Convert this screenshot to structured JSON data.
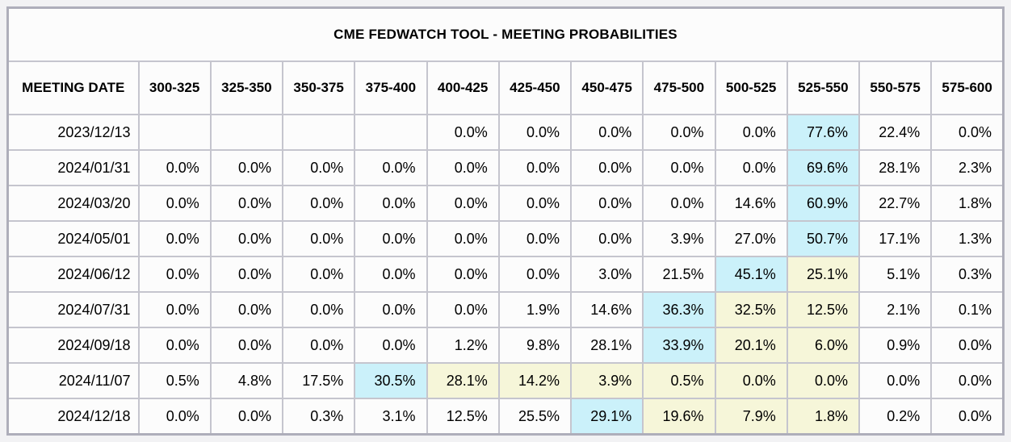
{
  "title": "CME FEDWATCH TOOL - MEETING PROBABILITIES",
  "colors": {
    "highlight_cyan": "#cbf1fa",
    "highlight_yellow": "#f6f6d9"
  },
  "table": {
    "columns": [
      "MEETING DATE",
      "300-325",
      "325-350",
      "350-375",
      "375-400",
      "400-425",
      "425-450",
      "450-475",
      "475-500",
      "500-525",
      "525-550",
      "550-575",
      "575-600"
    ],
    "rows": [
      {
        "date": "2023/12/13",
        "values": [
          "",
          "",
          "",
          "",
          "0.0%",
          "0.0%",
          "0.0%",
          "0.0%",
          "0.0%",
          "77.6%",
          "22.4%",
          "0.0%"
        ],
        "cell_colors": [
          "",
          "",
          "",
          "",
          "",
          "",
          "",
          "",
          "",
          "cyan",
          "",
          ""
        ]
      },
      {
        "date": "2024/01/31",
        "values": [
          "0.0%",
          "0.0%",
          "0.0%",
          "0.0%",
          "0.0%",
          "0.0%",
          "0.0%",
          "0.0%",
          "0.0%",
          "69.6%",
          "28.1%",
          "2.3%"
        ],
        "cell_colors": [
          "",
          "",
          "",
          "",
          "",
          "",
          "",
          "",
          "",
          "cyan",
          "",
          ""
        ]
      },
      {
        "date": "2024/03/20",
        "values": [
          "0.0%",
          "0.0%",
          "0.0%",
          "0.0%",
          "0.0%",
          "0.0%",
          "0.0%",
          "0.0%",
          "14.6%",
          "60.9%",
          "22.7%",
          "1.8%"
        ],
        "cell_colors": [
          "",
          "",
          "",
          "",
          "",
          "",
          "",
          "",
          "",
          "cyan",
          "",
          ""
        ]
      },
      {
        "date": "2024/05/01",
        "values": [
          "0.0%",
          "0.0%",
          "0.0%",
          "0.0%",
          "0.0%",
          "0.0%",
          "0.0%",
          "3.9%",
          "27.0%",
          "50.7%",
          "17.1%",
          "1.3%"
        ],
        "cell_colors": [
          "",
          "",
          "",
          "",
          "",
          "",
          "",
          "",
          "",
          "cyan",
          "",
          ""
        ]
      },
      {
        "date": "2024/06/12",
        "values": [
          "0.0%",
          "0.0%",
          "0.0%",
          "0.0%",
          "0.0%",
          "0.0%",
          "3.0%",
          "21.5%",
          "45.1%",
          "25.1%",
          "5.1%",
          "0.3%"
        ],
        "cell_colors": [
          "",
          "",
          "",
          "",
          "",
          "",
          "",
          "",
          "cyan",
          "yellow",
          "",
          ""
        ]
      },
      {
        "date": "2024/07/31",
        "values": [
          "0.0%",
          "0.0%",
          "0.0%",
          "0.0%",
          "0.0%",
          "1.9%",
          "14.6%",
          "36.3%",
          "32.5%",
          "12.5%",
          "2.1%",
          "0.1%"
        ],
        "cell_colors": [
          "",
          "",
          "",
          "",
          "",
          "",
          "",
          "cyan",
          "yellow",
          "yellow",
          "",
          ""
        ]
      },
      {
        "date": "2024/09/18",
        "values": [
          "0.0%",
          "0.0%",
          "0.0%",
          "0.0%",
          "1.2%",
          "9.8%",
          "28.1%",
          "33.9%",
          "20.1%",
          "6.0%",
          "0.9%",
          "0.0%"
        ],
        "cell_colors": [
          "",
          "",
          "",
          "",
          "",
          "",
          "",
          "cyan",
          "yellow",
          "yellow",
          "",
          ""
        ]
      },
      {
        "date": "2024/11/07",
        "values": [
          "0.5%",
          "4.8%",
          "17.5%",
          "30.5%",
          "28.1%",
          "14.2%",
          "3.9%",
          "0.5%",
          "0.0%",
          "0.0%",
          "0.0%",
          "0.0%"
        ],
        "cell_colors": [
          "",
          "",
          "",
          "cyan",
          "yellow",
          "yellow",
          "yellow",
          "yellow",
          "yellow",
          "yellow",
          "",
          ""
        ]
      },
      {
        "date": "2024/12/18",
        "values": [
          "0.0%",
          "0.0%",
          "0.3%",
          "3.1%",
          "12.5%",
          "25.5%",
          "29.1%",
          "19.6%",
          "7.9%",
          "1.8%",
          "0.2%",
          "0.0%"
        ],
        "cell_colors": [
          "",
          "",
          "",
          "",
          "",
          "",
          "cyan",
          "yellow",
          "yellow",
          "yellow",
          "",
          ""
        ]
      }
    ]
  },
  "chart_data": {
    "type": "table",
    "title": "CME FEDWATCH TOOL - MEETING PROBABILITIES",
    "row_label": "MEETING DATE",
    "categories": [
      "300-325",
      "325-350",
      "350-375",
      "375-400",
      "400-425",
      "425-450",
      "450-475",
      "475-500",
      "500-525",
      "525-550",
      "550-575",
      "575-600"
    ],
    "units": "percent",
    "series": [
      {
        "name": "2023/12/13",
        "values": [
          null,
          null,
          null,
          null,
          0.0,
          0.0,
          0.0,
          0.0,
          0.0,
          77.6,
          22.4,
          0.0
        ]
      },
      {
        "name": "2024/01/31",
        "values": [
          0.0,
          0.0,
          0.0,
          0.0,
          0.0,
          0.0,
          0.0,
          0.0,
          0.0,
          69.6,
          28.1,
          2.3
        ]
      },
      {
        "name": "2024/03/20",
        "values": [
          0.0,
          0.0,
          0.0,
          0.0,
          0.0,
          0.0,
          0.0,
          0.0,
          14.6,
          60.9,
          22.7,
          1.8
        ]
      },
      {
        "name": "2024/05/01",
        "values": [
          0.0,
          0.0,
          0.0,
          0.0,
          0.0,
          0.0,
          0.0,
          3.9,
          27.0,
          50.7,
          17.1,
          1.3
        ]
      },
      {
        "name": "2024/06/12",
        "values": [
          0.0,
          0.0,
          0.0,
          0.0,
          0.0,
          0.0,
          3.0,
          21.5,
          45.1,
          25.1,
          5.1,
          0.3
        ]
      },
      {
        "name": "2024/07/31",
        "values": [
          0.0,
          0.0,
          0.0,
          0.0,
          0.0,
          1.9,
          14.6,
          36.3,
          32.5,
          12.5,
          2.1,
          0.1
        ]
      },
      {
        "name": "2024/09/18",
        "values": [
          0.0,
          0.0,
          0.0,
          0.0,
          1.2,
          9.8,
          28.1,
          33.9,
          20.1,
          6.0,
          0.9,
          0.0
        ]
      },
      {
        "name": "2024/11/07",
        "values": [
          0.5,
          4.8,
          17.5,
          30.5,
          28.1,
          14.2,
          3.9,
          0.5,
          0.0,
          0.0,
          0.0,
          0.0
        ]
      },
      {
        "name": "2024/12/18",
        "values": [
          0.0,
          0.0,
          0.3,
          3.1,
          12.5,
          25.5,
          29.1,
          19.6,
          7.9,
          1.8,
          0.2,
          0.0
        ]
      }
    ]
  }
}
